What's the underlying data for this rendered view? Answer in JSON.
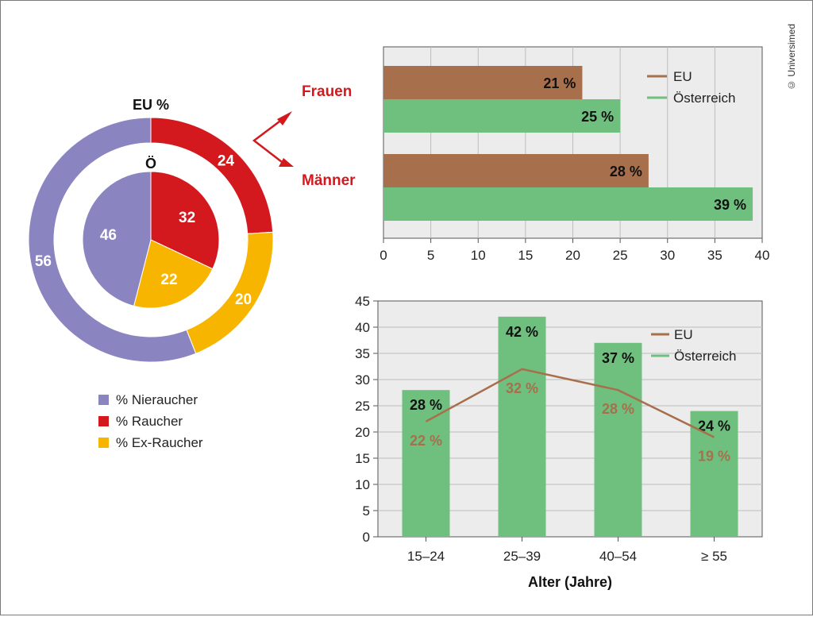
{
  "copyright": "© Universimed",
  "colors": {
    "nichtraucher": "#8a84c0",
    "raucher": "#d4191e",
    "ex_raucher": "#f7b500",
    "eu": "#a86f4c",
    "oesterreich": "#6fbf7f",
    "label_red": "#d4191e",
    "plot_bg": "#ececec"
  },
  "chart_data": [
    {
      "type": "pie",
      "subtype": "nested-donut",
      "outer_label": "EU %",
      "inner_label": "Ö",
      "categories": [
        "% Nieraucher",
        "% Raucher",
        "% Ex-Raucher"
      ],
      "series": [
        {
          "name": "EU",
          "values": [
            56,
            24,
            20
          ]
        },
        {
          "name": "Ö",
          "values": [
            46,
            32,
            22
          ]
        }
      ],
      "legend": {
        "position": "bottom-left",
        "entries": [
          "% Nieraucher",
          "% Raucher",
          "% Ex-Raucher"
        ]
      }
    },
    {
      "type": "bar",
      "orientation": "horizontal",
      "categories": [
        "Frauen",
        "Männer"
      ],
      "series": [
        {
          "name": "EU",
          "values": [
            21,
            28
          ],
          "labels": [
            "21 %",
            "28 %"
          ]
        },
        {
          "name": "Österreich",
          "values": [
            25,
            39
          ],
          "labels": [
            "25 %",
            "39 %"
          ]
        }
      ],
      "xlim": [
        0,
        40
      ],
      "xticks": [
        "0",
        "5",
        "10",
        "15",
        "20",
        "25",
        "30",
        "35",
        "40"
      ],
      "grid": true,
      "legend": {
        "position": "top-right",
        "entries": [
          "EU",
          "Österreich"
        ]
      }
    },
    {
      "type": "bar",
      "subtype": "bar-with-line",
      "categories": [
        "15–24",
        "25–39",
        "40–54",
        "≥ 55"
      ],
      "series": [
        {
          "name": "Österreich",
          "type": "bar",
          "values": [
            28,
            42,
            37,
            24
          ],
          "labels": [
            "28 %",
            "42 %",
            "37 %",
            "24 %"
          ]
        },
        {
          "name": "EU",
          "type": "line",
          "values": [
            22,
            32,
            28,
            19
          ],
          "labels": [
            "22 %",
            "32 %",
            "28 %",
            "19 %"
          ]
        }
      ],
      "xlabel": "Alter (Jahre)",
      "ylim": [
        0,
        45
      ],
      "yticks": [
        "0",
        "5",
        "10",
        "15",
        "20",
        "25",
        "30",
        "35",
        "40",
        "45"
      ],
      "grid": true,
      "legend": {
        "position": "top-right",
        "entries": [
          "EU",
          "Österreich"
        ]
      }
    }
  ]
}
